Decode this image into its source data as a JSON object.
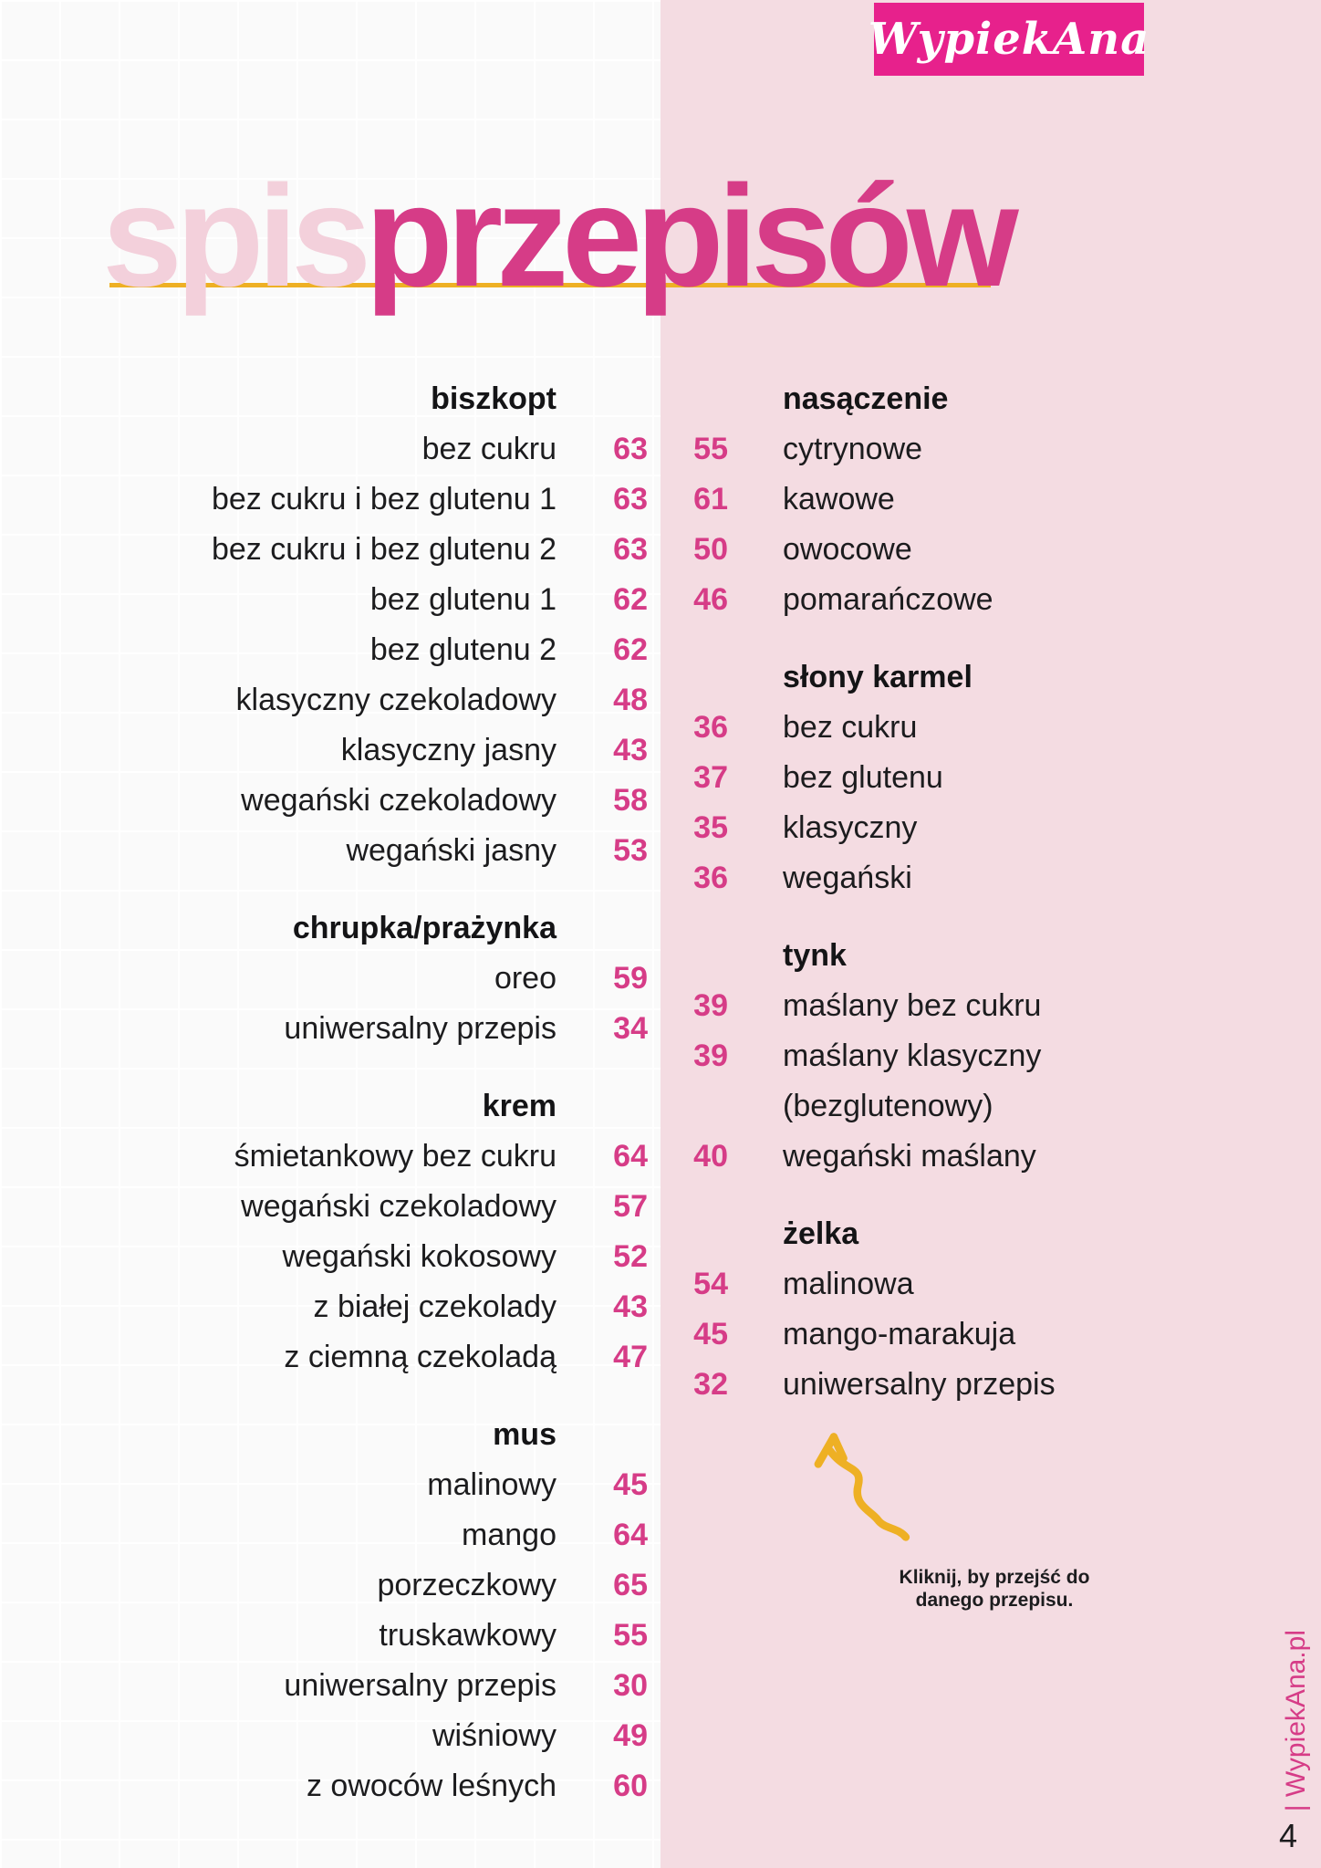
{
  "brand": {
    "logo_text": "WypiekAna",
    "site_label": "| WypiekAna.pl"
  },
  "header": {
    "title_light": "spis",
    "title_bold": "przepisów"
  },
  "note": {
    "line1": "Kliknij, by przejść do",
    "line2": "danego przepisu."
  },
  "page": {
    "number": "4"
  },
  "icons": {
    "arrow_doodle": "hand-drawn yellow arrow pointing up-left"
  },
  "colors": {
    "bg_left": "#fafafa",
    "panel_pink": "#f4dce2",
    "logo_pink": "#e7218c",
    "magenta": "#d63c87",
    "pale_pink": "#f3d0db",
    "yellow": "#eeb024",
    "ink": "#1c1c1e"
  },
  "left_sections": [
    {
      "title": "biszkopt",
      "items": [
        {
          "name": "bez cukru",
          "page": "63"
        },
        {
          "name": "bez cukru i bez glutenu 1",
          "page": "63"
        },
        {
          "name": "bez cukru i bez glutenu 2",
          "page": "63"
        },
        {
          "name": "bez glutenu 1",
          "page": "62"
        },
        {
          "name": "bez glutenu 2",
          "page": "62"
        },
        {
          "name": "klasyczny czekoladowy",
          "page": "48"
        },
        {
          "name": "klasyczny jasny",
          "page": "43"
        },
        {
          "name": "wegański czekoladowy",
          "page": "58"
        },
        {
          "name": "wegański jasny",
          "page": "53"
        }
      ]
    },
    {
      "title": "chrupka/prażynka",
      "items": [
        {
          "name": "oreo",
          "page": "59"
        },
        {
          "name": "uniwersalny przepis",
          "page": "34"
        }
      ]
    },
    {
      "title": "krem",
      "items": [
        {
          "name": "śmietankowy bez cukru",
          "page": "64"
        },
        {
          "name": "wegański czekoladowy",
          "page": "57"
        },
        {
          "name": "wegański kokosowy",
          "page": "52"
        },
        {
          "name": "z białej czekolady",
          "page": "43"
        },
        {
          "name": "z ciemną czekoladą",
          "page": "47"
        }
      ]
    },
    {
      "title": "mus",
      "items": [
        {
          "name": "malinowy",
          "page": "45"
        },
        {
          "name": "mango",
          "page": "64"
        },
        {
          "name": "porzeczkowy",
          "page": "65"
        },
        {
          "name": "truskawkowy",
          "page": "55"
        },
        {
          "name": "uniwersalny przepis",
          "page": "30"
        },
        {
          "name": "wiśniowy",
          "page": "49"
        },
        {
          "name": "z owoców leśnych",
          "page": "60"
        }
      ]
    }
  ],
  "right_sections": [
    {
      "title": "nasączenie",
      "items": [
        {
          "page": "55",
          "name": "cytrynowe"
        },
        {
          "page": "61",
          "name": "kawowe"
        },
        {
          "page": "50",
          "name": "owocowe"
        },
        {
          "page": "46",
          "name": "pomarańczowe"
        }
      ]
    },
    {
      "title": "słony karmel",
      "items": [
        {
          "page": "36",
          "name": "bez cukru"
        },
        {
          "page": "37",
          "name": "bez glutenu"
        },
        {
          "page": "35",
          "name": "klasyczny"
        },
        {
          "page": "36",
          "name": "wegański"
        }
      ]
    },
    {
      "title": "tynk",
      "items": [
        {
          "page": "39",
          "name": "maślany bez cukru"
        },
        {
          "page": "39",
          "name": "maślany klasyczny"
        },
        {
          "page": "",
          "name": "(bezglutenowy)"
        },
        {
          "page": "40",
          "name": "wegański maślany"
        }
      ]
    },
    {
      "title": "żelka",
      "items": [
        {
          "page": "54",
          "name": "malinowa"
        },
        {
          "page": "45",
          "name": "mango-marakuja"
        },
        {
          "page": "32",
          "name": "uniwersalny przepis"
        }
      ]
    }
  ]
}
